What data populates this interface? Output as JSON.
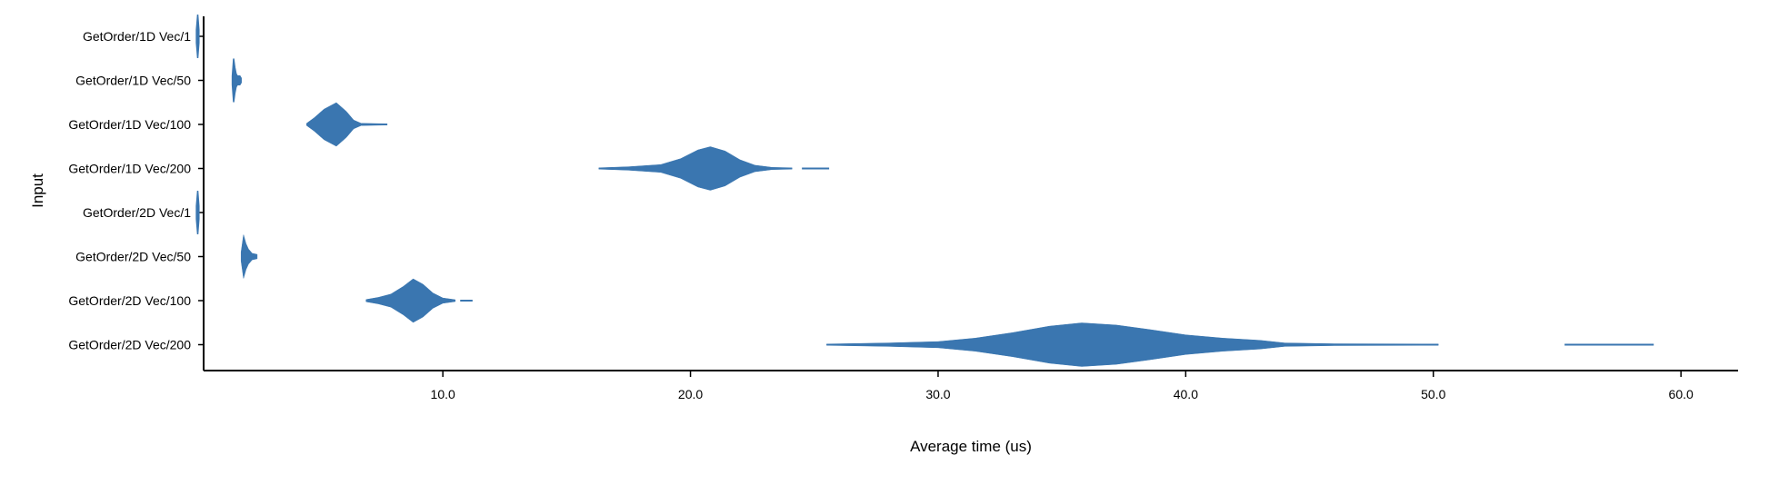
{
  "chart_data": {
    "type": "violin",
    "xlabel": "Average time (us)",
    "ylabel": "Input",
    "xlim": [
      0,
      62
    ],
    "xticks": [
      10.0,
      20.0,
      30.0,
      40.0,
      50.0,
      60.0
    ],
    "xtick_labels": [
      "10.0",
      "20.0",
      "30.0",
      "40.0",
      "50.0",
      "60.0"
    ],
    "color": "#3a76b0",
    "grid": false,
    "categories": [
      "GetOrder/1D Vec/1",
      "GetOrder/1D Vec/50",
      "GetOrder/1D Vec/100",
      "GetOrder/1D Vec/200",
      "GetOrder/2D Vec/1",
      "GetOrder/2D Vec/50",
      "GetOrder/2D Vec/100",
      "GetOrder/2D Vec/200"
    ],
    "series": [
      {
        "category": "GetOrder/1D Vec/1",
        "min": 0.05,
        "max": 0.15,
        "segments": [],
        "profile": [
          [
            0.05,
            0.3
          ],
          [
            0.1,
            1.0
          ],
          [
            0.15,
            0.3
          ]
        ]
      },
      {
        "category": "GetOrder/1D Vec/50",
        "min": 1.5,
        "max": 1.85,
        "segments": [],
        "profile": [
          [
            1.5,
            0.2
          ],
          [
            1.55,
            1.0
          ],
          [
            1.6,
            0.6
          ],
          [
            1.65,
            0.3
          ],
          [
            1.7,
            0.2
          ],
          [
            1.8,
            0.2
          ],
          [
            1.85,
            0.1
          ]
        ]
      },
      {
        "category": "GetOrder/1D Vec/100",
        "min": 4.5,
        "max": 7.75,
        "segments": [],
        "profile": [
          [
            4.5,
            0.05
          ],
          [
            4.8,
            0.3
          ],
          [
            5.2,
            0.7
          ],
          [
            5.7,
            1.0
          ],
          [
            6.1,
            0.6
          ],
          [
            6.4,
            0.2
          ],
          [
            6.7,
            0.05
          ],
          [
            7.75,
            0.03
          ]
        ]
      },
      {
        "category": "GetOrder/1D Vec/200",
        "min": 16.3,
        "max": 25.6,
        "segments": [
          [
            16.3,
            24.1
          ],
          [
            24.5,
            25.6
          ]
        ],
        "profile": [
          [
            16.3,
            0.03
          ],
          [
            17.5,
            0.08
          ],
          [
            18.8,
            0.18
          ],
          [
            19.6,
            0.45
          ],
          [
            20.3,
            0.85
          ],
          [
            20.8,
            1.0
          ],
          [
            21.4,
            0.8
          ],
          [
            22.0,
            0.4
          ],
          [
            22.6,
            0.15
          ],
          [
            23.3,
            0.05
          ],
          [
            24.1,
            0.03
          ]
        ]
      },
      {
        "category": "GetOrder/2D Vec/1",
        "min": 0.05,
        "max": 0.15,
        "segments": [],
        "profile": [
          [
            0.05,
            0.3
          ],
          [
            0.1,
            1.0
          ],
          [
            0.15,
            0.3
          ]
        ]
      },
      {
        "category": "GetOrder/2D Vec/50",
        "min": 1.85,
        "max": 2.5,
        "segments": [],
        "profile": [
          [
            1.85,
            0.2
          ],
          [
            1.95,
            1.0
          ],
          [
            2.05,
            0.6
          ],
          [
            2.15,
            0.35
          ],
          [
            2.3,
            0.15
          ],
          [
            2.5,
            0.1
          ]
        ]
      },
      {
        "category": "GetOrder/2D Vec/100",
        "min": 6.9,
        "max": 11.2,
        "segments": [
          [
            6.9,
            10.5
          ],
          [
            10.7,
            11.2
          ]
        ],
        "profile": [
          [
            6.9,
            0.05
          ],
          [
            7.4,
            0.15
          ],
          [
            7.9,
            0.3
          ],
          [
            8.4,
            0.65
          ],
          [
            8.8,
            1.0
          ],
          [
            9.2,
            0.75
          ],
          [
            9.6,
            0.35
          ],
          [
            10.0,
            0.12
          ],
          [
            10.5,
            0.04
          ]
        ]
      },
      {
        "category": "GetOrder/2D Vec/200",
        "min": 25.5,
        "max": 58.9,
        "segments": [
          [
            25.5,
            50.2
          ],
          [
            55.3,
            58.9
          ]
        ],
        "profile": [
          [
            25.5,
            0.03
          ],
          [
            28.0,
            0.08
          ],
          [
            30.0,
            0.14
          ],
          [
            31.5,
            0.3
          ],
          [
            33.0,
            0.55
          ],
          [
            34.5,
            0.85
          ],
          [
            35.8,
            1.0
          ],
          [
            37.2,
            0.9
          ],
          [
            38.5,
            0.7
          ],
          [
            40.0,
            0.45
          ],
          [
            41.5,
            0.3
          ],
          [
            43.0,
            0.2
          ],
          [
            44.0,
            0.08
          ],
          [
            46.0,
            0.04
          ],
          [
            50.2,
            0.03
          ]
        ]
      }
    ]
  }
}
